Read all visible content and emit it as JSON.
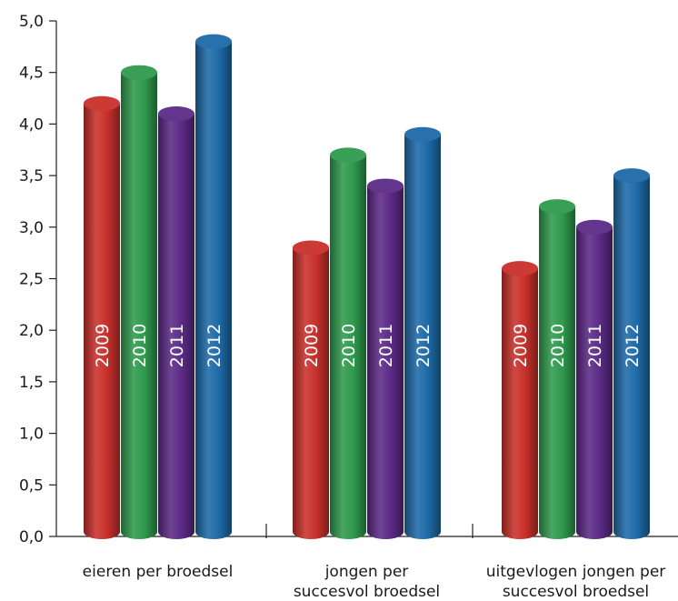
{
  "chart_data": {
    "type": "bar",
    "categories": [
      [
        "eieren per broedsel"
      ],
      [
        "jongen per",
        "succesvol broedsel"
      ],
      [
        "uitgevlogen jongen per",
        "succesvol broedsel"
      ]
    ],
    "series": [
      {
        "name": "2009",
        "color": "#c8302a",
        "values": [
          4.2,
          2.8,
          2.6
        ]
      },
      {
        "name": "2010",
        "color": "#2f9a4d",
        "values": [
          4.5,
          3.7,
          3.2
        ]
      },
      {
        "name": "2011",
        "color": "#5c2a86",
        "values": [
          4.1,
          3.4,
          3.0
        ]
      },
      {
        "name": "2012",
        "color": "#1e6aa8",
        "values": [
          4.8,
          3.9,
          3.5
        ]
      }
    ],
    "y_ticks": [
      "0,0",
      "0,5",
      "1,0",
      "1,5",
      "2,0",
      "2,5",
      "3,0",
      "3,5",
      "4,0",
      "4,5",
      "5,0"
    ],
    "ylim": [
      0,
      5
    ],
    "grid": false,
    "legend": "none",
    "bar_style": "cylinder"
  }
}
